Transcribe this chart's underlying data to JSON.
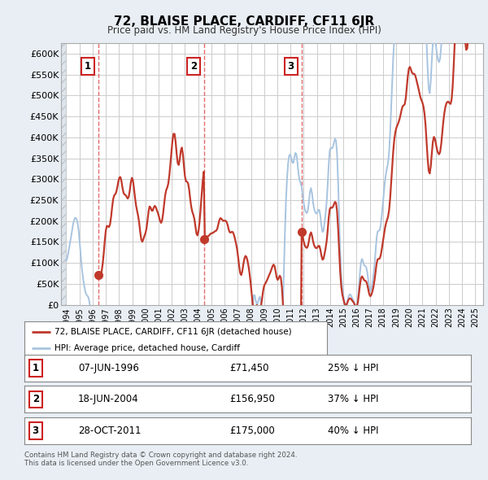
{
  "title": "72, BLAISE PLACE, CARDIFF, CF11 6JR",
  "subtitle": "Price paid vs. HM Land Registry's House Price Index (HPI)",
  "ylim": [
    0,
    625000
  ],
  "yticks": [
    0,
    50000,
    100000,
    150000,
    200000,
    250000,
    300000,
    350000,
    400000,
    450000,
    500000,
    550000,
    600000
  ],
  "ytick_labels": [
    "£0",
    "£50K",
    "£100K",
    "£150K",
    "£200K",
    "£250K",
    "£300K",
    "£350K",
    "£400K",
    "£450K",
    "£500K",
    "£550K",
    "£600K"
  ],
  "xlim_start": 1993.6,
  "xlim_end": 2025.6,
  "sale_times": [
    1996.44,
    2004.46,
    2011.83
  ],
  "sale_prices": [
    71450,
    156950,
    175000
  ],
  "hpi_line_color": "#a8c4e0",
  "price_line_color": "#c0392b",
  "sale_marker_color": "#c0392b",
  "fig_bg_color": "#e8eef4",
  "plot_bg_color": "#ffffff",
  "grid_color": "#cccccc",
  "legend_label_price": "72, BLAISE PLACE, CARDIFF, CF11 6JR (detached house)",
  "legend_label_hpi": "HPI: Average price, detached house, Cardiff",
  "table_data": [
    [
      "1",
      "07-JUN-1996",
      "£71,450",
      "25% ↓ HPI"
    ],
    [
      "2",
      "18-JUN-2004",
      "£156,950",
      "37% ↓ HPI"
    ],
    [
      "3",
      "28-OCT-2011",
      "£175,000",
      "40% ↓ HPI"
    ]
  ],
  "footer": "Contains HM Land Registry data © Crown copyright and database right 2024.\nThis data is licensed under the Open Government Licence v3.0.",
  "annotation_labels": [
    "1",
    "2",
    "3"
  ],
  "title_fontsize": 11,
  "subtitle_fontsize": 8.5,
  "ytick_fontsize": 8,
  "xtick_fontsize": 7
}
